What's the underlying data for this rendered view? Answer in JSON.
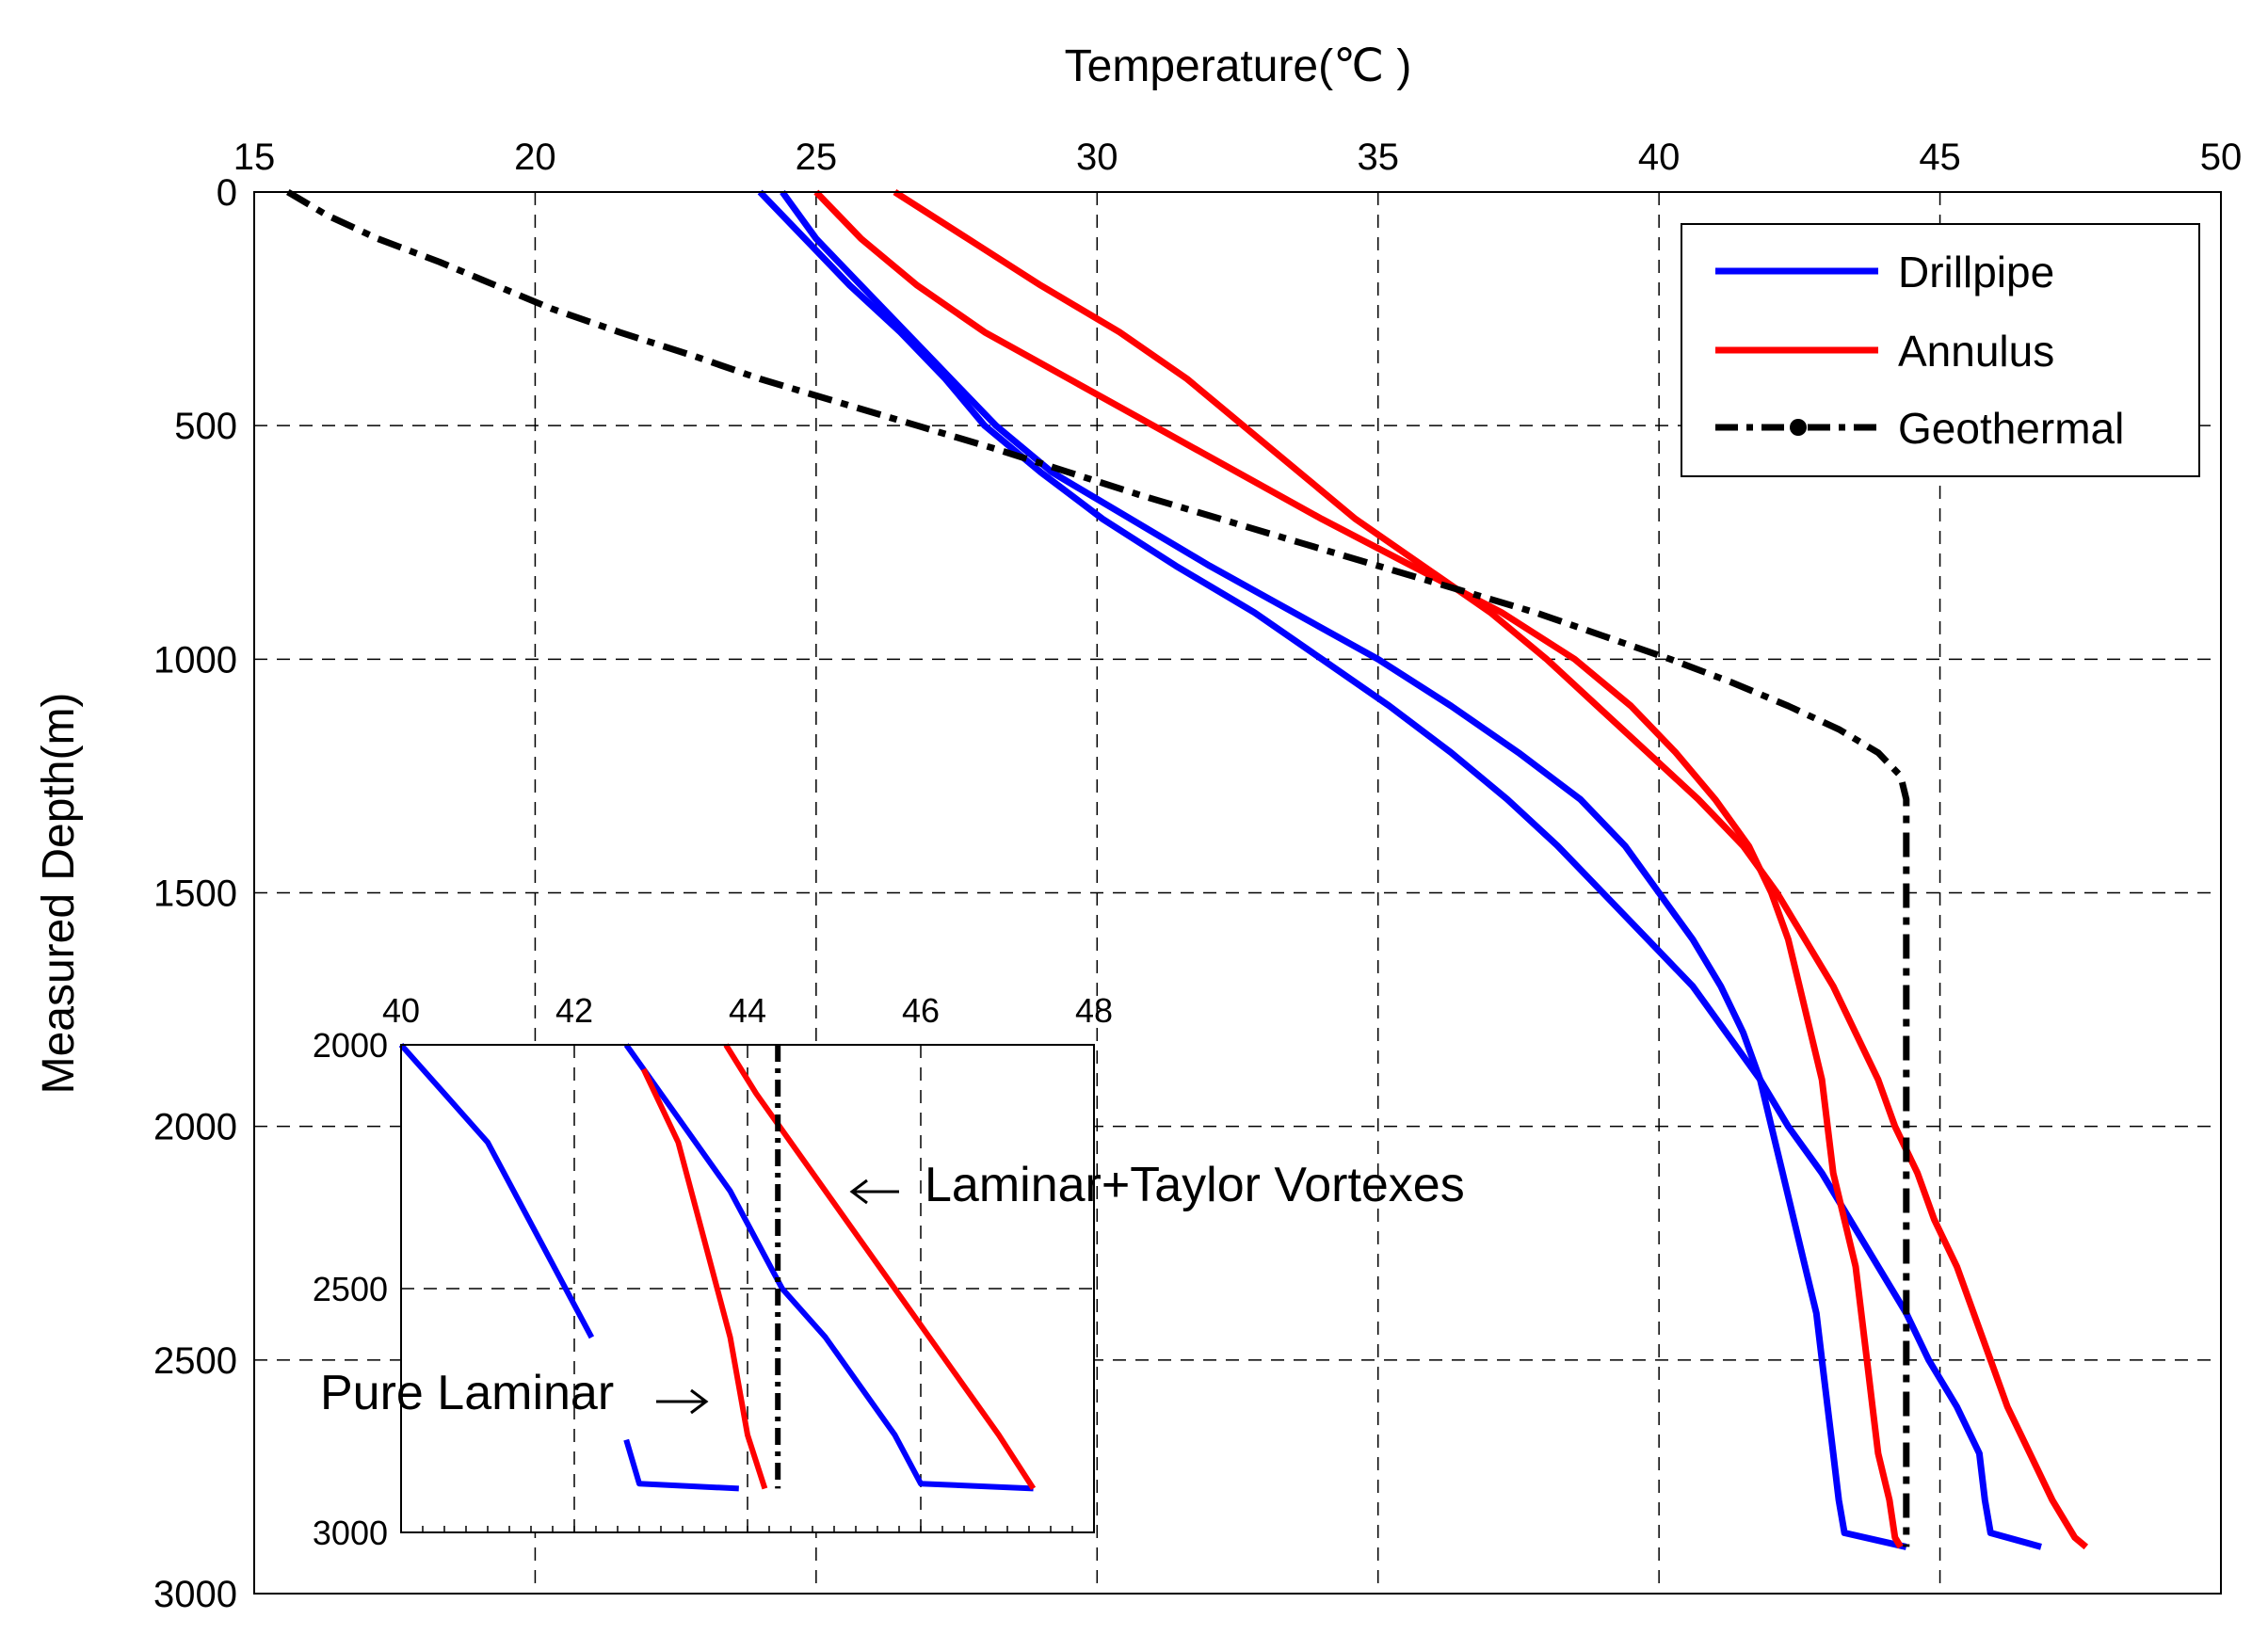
{
  "chart_data": {
    "type": "line",
    "title": "",
    "xlabel": "Temperature(℃ )",
    "ylabel": "Measured Depth(m)",
    "xlim": [
      15,
      50
    ],
    "ylim": [
      0,
      3000
    ],
    "x_ticks": [
      "15",
      "20",
      "25",
      "30",
      "35",
      "40",
      "45",
      "50"
    ],
    "y_ticks": [
      "0",
      "500",
      "1000",
      "1500",
      "2000",
      "2500",
      "3000"
    ],
    "y_inverted": true,
    "grid": true,
    "legend_position": "top-right",
    "legend": [
      "Drillpipe",
      "Annulus",
      "Geothermal"
    ],
    "series": [
      {
        "name": "Drillpipe",
        "color": "#0000ff",
        "style": "solid",
        "points": [
          [
            24.0,
            0
          ],
          [
            24.8,
            100
          ],
          [
            25.6,
            200
          ],
          [
            26.5,
            300
          ],
          [
            27.3,
            400
          ],
          [
            28.0,
            500
          ],
          [
            29.0,
            600
          ],
          [
            30.1,
            700
          ],
          [
            31.4,
            800
          ],
          [
            32.8,
            900
          ],
          [
            34.0,
            1000
          ],
          [
            35.2,
            1100
          ],
          [
            36.3,
            1200
          ],
          [
            37.3,
            1300
          ],
          [
            38.2,
            1400
          ],
          [
            39.0,
            1500
          ],
          [
            39.8,
            1600
          ],
          [
            40.6,
            1700
          ],
          [
            41.2,
            1800
          ],
          [
            41.8,
            1900
          ],
          [
            42.3,
            2000
          ],
          [
            42.9,
            2100
          ],
          [
            43.4,
            2200
          ],
          [
            43.9,
            2300
          ],
          [
            44.4,
            2400
          ],
          [
            44.8,
            2500
          ],
          [
            45.3,
            2600
          ],
          [
            45.7,
            2700
          ],
          [
            45.8,
            2800
          ],
          [
            45.9,
            2870
          ],
          [
            46.8,
            2900
          ]
        ]
      },
      {
        "name": "Drillpipe",
        "color": "#0000ff",
        "style": "solid",
        "points": [
          [
            24.4,
            0
          ],
          [
            25.0,
            100
          ],
          [
            25.8,
            200
          ],
          [
            26.6,
            300
          ],
          [
            27.4,
            400
          ],
          [
            28.2,
            500
          ],
          [
            29.2,
            600
          ],
          [
            30.6,
            700
          ],
          [
            32.0,
            800
          ],
          [
            33.5,
            900
          ],
          [
            35.0,
            1000
          ],
          [
            36.3,
            1100
          ],
          [
            37.5,
            1200
          ],
          [
            38.6,
            1300
          ],
          [
            39.4,
            1400
          ],
          [
            40.0,
            1500
          ],
          [
            40.6,
            1600
          ],
          [
            41.1,
            1700
          ],
          [
            41.5,
            1800
          ],
          [
            41.8,
            1900
          ],
          [
            42.0,
            2000
          ],
          [
            42.2,
            2100
          ],
          [
            42.4,
            2200
          ],
          [
            42.6,
            2300
          ],
          [
            42.8,
            2400
          ],
          [
            42.9,
            2500
          ],
          [
            43.0,
            2600
          ],
          [
            43.1,
            2700
          ],
          [
            43.2,
            2800
          ],
          [
            43.3,
            2870
          ],
          [
            44.4,
            2900
          ]
        ]
      },
      {
        "name": "Annulus",
        "color": "#ff0000",
        "style": "solid",
        "points": [
          [
            25.0,
            0
          ],
          [
            25.8,
            100
          ],
          [
            26.8,
            200
          ],
          [
            28.0,
            300
          ],
          [
            29.5,
            400
          ],
          [
            31.0,
            500
          ],
          [
            32.5,
            600
          ],
          [
            34.0,
            700
          ],
          [
            35.6,
            800
          ],
          [
            37.2,
            900
          ],
          [
            38.5,
            1000
          ],
          [
            39.5,
            1100
          ],
          [
            40.3,
            1200
          ],
          [
            41.0,
            1300
          ],
          [
            41.6,
            1400
          ],
          [
            42.0,
            1500
          ],
          [
            42.3,
            1600
          ],
          [
            42.5,
            1700
          ],
          [
            42.7,
            1800
          ],
          [
            42.9,
            1900
          ],
          [
            43.0,
            2000
          ],
          [
            43.1,
            2100
          ],
          [
            43.3,
            2200
          ],
          [
            43.5,
            2300
          ],
          [
            43.6,
            2400
          ],
          [
            43.7,
            2500
          ],
          [
            43.8,
            2600
          ],
          [
            43.9,
            2700
          ],
          [
            44.1,
            2800
          ],
          [
            44.2,
            2880
          ],
          [
            44.3,
            2900
          ]
        ]
      },
      {
        "name": "Annulus",
        "color": "#ff0000",
        "style": "solid",
        "points": [
          [
            26.4,
            0
          ],
          [
            27.7,
            100
          ],
          [
            29.0,
            200
          ],
          [
            30.4,
            300
          ],
          [
            31.6,
            400
          ],
          [
            32.6,
            500
          ],
          [
            33.6,
            600
          ],
          [
            34.6,
            700
          ],
          [
            35.8,
            800
          ],
          [
            37.0,
            900
          ],
          [
            38.0,
            1000
          ],
          [
            38.9,
            1100
          ],
          [
            39.8,
            1200
          ],
          [
            40.7,
            1300
          ],
          [
            41.5,
            1400
          ],
          [
            42.1,
            1500
          ],
          [
            42.6,
            1600
          ],
          [
            43.1,
            1700
          ],
          [
            43.5,
            1800
          ],
          [
            43.9,
            1900
          ],
          [
            44.2,
            2000
          ],
          [
            44.6,
            2100
          ],
          [
            44.9,
            2200
          ],
          [
            45.3,
            2300
          ],
          [
            45.6,
            2400
          ],
          [
            45.9,
            2500
          ],
          [
            46.2,
            2600
          ],
          [
            46.6,
            2700
          ],
          [
            47.0,
            2800
          ],
          [
            47.4,
            2880
          ],
          [
            47.6,
            2900
          ]
        ]
      },
      {
        "name": "Geothermal",
        "color": "#000000",
        "style": "dashdot",
        "points": [
          [
            15.6,
            0
          ],
          [
            16.3,
            50
          ],
          [
            17.2,
            100
          ],
          [
            18.3,
            150
          ],
          [
            19.3,
            200
          ],
          [
            20.3,
            250
          ],
          [
            21.5,
            300
          ],
          [
            22.8,
            350
          ],
          [
            24.0,
            400
          ],
          [
            25.4,
            450
          ],
          [
            26.8,
            500
          ],
          [
            28.2,
            550
          ],
          [
            29.5,
            600
          ],
          [
            30.8,
            650
          ],
          [
            32.2,
            700
          ],
          [
            33.6,
            750
          ],
          [
            35.0,
            800
          ],
          [
            36.4,
            850
          ],
          [
            37.8,
            900
          ],
          [
            39.0,
            950
          ],
          [
            40.2,
            1000
          ],
          [
            41.3,
            1050
          ],
          [
            42.3,
            1100
          ],
          [
            43.2,
            1150
          ],
          [
            43.9,
            1200
          ],
          [
            44.3,
            1250
          ],
          [
            44.4,
            1300
          ],
          [
            44.4,
            1350
          ],
          [
            44.4,
            2000
          ],
          [
            44.4,
            2500
          ],
          [
            44.4,
            2900
          ]
        ]
      }
    ],
    "inset": {
      "xlim": [
        40,
        48
      ],
      "ylim": [
        2000,
        3000
      ],
      "x_ticks": [
        "40",
        "42",
        "44",
        "46",
        "48"
      ],
      "y_ticks": [
        "2000",
        "2500",
        "3000"
      ],
      "annotations": [
        "Laminar+Taylor Vortexes",
        "Pure Laminar"
      ],
      "series": [
        {
          "name": "Drillpipe",
          "color": "#0000ff",
          "style": "solid",
          "points": [
            [
              40.0,
              2000
            ],
            [
              40.5,
              2100
            ],
            [
              41.0,
              2200
            ],
            [
              41.3,
              2300
            ],
            [
              41.6,
              2400
            ],
            [
              41.9,
              2500
            ],
            [
              42.2,
              2600
            ]
          ]
        },
        {
          "name": "Drillpipe",
          "color": "#0000ff",
          "style": "solid",
          "points": [
            [
              42.6,
              2810
            ],
            [
              42.75,
              2900
            ],
            [
              43.9,
              2910
            ]
          ]
        },
        {
          "name": "Drillpipe",
          "color": "#0000ff",
          "style": "solid",
          "points": [
            [
              42.6,
              2000
            ],
            [
              43.0,
              2100
            ],
            [
              43.4,
              2200
            ],
            [
              43.8,
              2300
            ],
            [
              44.1,
              2400
            ],
            [
              44.4,
              2500
            ],
            [
              44.9,
              2600
            ],
            [
              45.3,
              2700
            ],
            [
              45.7,
              2800
            ],
            [
              46.0,
              2900
            ],
            [
              47.3,
              2910
            ]
          ]
        },
        {
          "name": "Annulus",
          "color": "#ff0000",
          "style": "solid",
          "points": [
            [
              42.8,
              2050
            ],
            [
              43.2,
              2200
            ],
            [
              43.5,
              2400
            ],
            [
              43.8,
              2600
            ],
            [
              44.0,
              2800
            ],
            [
              44.2,
              2910
            ]
          ]
        },
        {
          "name": "Annulus",
          "color": "#ff0000",
          "style": "solid",
          "points": [
            [
              43.75,
              2000
            ],
            [
              44.1,
              2100
            ],
            [
              44.5,
              2200
            ],
            [
              44.9,
              2300
            ],
            [
              45.3,
              2400
            ],
            [
              45.7,
              2500
            ],
            [
              46.1,
              2600
            ],
            [
              46.5,
              2700
            ],
            [
              46.9,
              2800
            ],
            [
              47.3,
              2910
            ]
          ]
        },
        {
          "name": "Geothermal",
          "color": "#000000",
          "style": "dashdot",
          "points": [
            [
              44.35,
              2000
            ],
            [
              44.35,
              2910
            ]
          ]
        }
      ]
    }
  }
}
